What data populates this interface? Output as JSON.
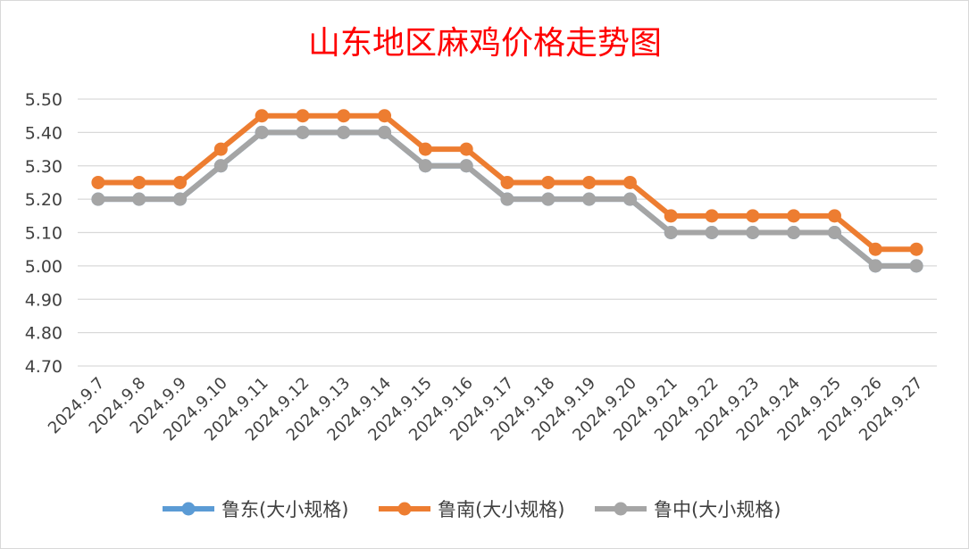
{
  "chart_data": {
    "type": "line",
    "title": "山东地区麻鸡价格走势图",
    "xlabel": "",
    "ylabel": "",
    "x": [
      "2024.9.7",
      "2024.9.8",
      "2024.9.9",
      "2024.9.10",
      "2024.9.11",
      "2024.9.12",
      "2024.9.13",
      "2024.9.14",
      "2024.9.15",
      "2024.9.16",
      "2024.9.17",
      "2024.9.18",
      "2024.9.19",
      "2024.9.20",
      "2024.9.21",
      "2024.9.22",
      "2024.9.23",
      "2024.9.24",
      "2024.9.25",
      "2024.9.26",
      "2024.9.27"
    ],
    "ylim": [
      4.7,
      5.5
    ],
    "yticks": [
      "4.70",
      "4.80",
      "4.90",
      "5.00",
      "5.10",
      "5.20",
      "5.30",
      "5.40",
      "5.50"
    ],
    "grid": true,
    "legend_position": "bottom",
    "series": [
      {
        "name": "鲁东(大小规格)",
        "color": "#5b9bd5",
        "values": [
          5.2,
          5.2,
          5.2,
          5.3,
          5.4,
          5.4,
          5.4,
          5.4,
          5.3,
          5.3,
          5.2,
          5.2,
          5.2,
          5.2,
          5.1,
          5.1,
          5.1,
          5.1,
          5.1,
          5.0,
          5.0
        ]
      },
      {
        "name": "鲁南(大小规格)",
        "color": "#ed7d31",
        "values": [
          5.25,
          5.25,
          5.25,
          5.35,
          5.45,
          5.45,
          5.45,
          5.45,
          5.35,
          5.35,
          5.25,
          5.25,
          5.25,
          5.25,
          5.15,
          5.15,
          5.15,
          5.15,
          5.15,
          5.05,
          5.05
        ]
      },
      {
        "name": "鲁中(大小规格)",
        "color": "#a5a5a5",
        "values": [
          5.2,
          5.2,
          5.2,
          5.3,
          5.4,
          5.4,
          5.4,
          5.4,
          5.3,
          5.3,
          5.2,
          5.2,
          5.2,
          5.2,
          5.1,
          5.1,
          5.1,
          5.1,
          5.1,
          5.0,
          5.0
        ]
      }
    ]
  }
}
